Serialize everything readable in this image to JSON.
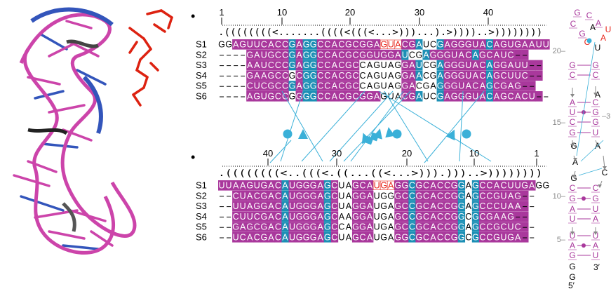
{
  "panel_a": {
    "structure_color": "#cc44aa",
    "helix_accent": "#3355bb",
    "ligand_color": "#dd2211"
  },
  "alignment_top": {
    "bullet": "•",
    "ticks": [
      "1",
      "10",
      "20",
      "30",
      "40"
    ],
    "dot_bracket": ".((((((((<.......((((<(((<...>)))...).>))))..>))))))))",
    "rows": [
      {
        "label": "S1",
        "seq": "GGAGUUCACCGAGGCCACGCGGAGUACGAUCGAGGGUACAGUGAAUU",
        "mask": "..MMMMMMMMBMBBMMMMMMMMMRRRMMBbbBMMMMMMBMMMMMMMMMM"
      },
      {
        "label": "S2",
        "seq": "----GAUGCCGAGGCCACGCGGUGGAUCGAGGGUACAGCAUC--",
        "mask": "----MMMMMMBMBBMMMMMMMMMMMMBbbBMMMMMMBMMMMMMM--"
      },
      {
        "label": "S3",
        "seq": "----AAUCCCGAGGCCACGCCAGUAGGAUCGAGGGUACAGGAUU--",
        "mask": "----MMMMMMBMBBMMMMMMwwwwwwMMBbbBMMMMMMBMMMMMMM--"
      },
      {
        "label": "S4",
        "seq": "----GAAGCCGCGGCCACGCCAGUAGGAACGAGGGUACAGCUUC--",
        "mask": "----MMMMMMwMBBMMMMMMwwwwwwMMBbbBMMMMMMBMMMMMMM--"
      },
      {
        "label": "S5",
        "seq": "----CUCGCCGAGGCCACGCCAGUAGGACGAGGGUACAGCGAG--",
        "mask": "----MMMMMMBMBBMMMMMMwwwwwwMMwbbBMMMMMMBMMMMMMM--"
      },
      {
        "label": "S6",
        "seq": "----AGUGCCGGGGCCACGCGGAGUACGAUCGAGGGUACAGCACU--",
        "mask": "----MMMMMMwMBBMMMMMMMMMwwwMMBbbBMMMMMMBMMMMMMM--"
      }
    ]
  },
  "alignment_bottom": {
    "bullet": "•",
    "ticks": [
      "40",
      "30",
      "20",
      "10",
      "1"
    ],
    "dot_bracket": ".((((((((<..(((<.((...((<...>))).)))..>))))))))",
    "rows": [
      {
        "label": "S1",
        "seq": "UUAAGUGACAUGGGAGCUAGCAUGAGGCGCACCGGAGCCACUUGAGG",
        "mask": "MMMMMMMMMBMMMMMBMwwMMMRRRMMBMMMMMMBwBMMMMMMMM.."
      },
      {
        "label": "S2",
        "seq": "--CUACGACAUGGGAGCUAGGAUGGGCCGCACCGGAGCCGUAG--",
        "mask": "--MMMMMMMBMMMMMBMwwMMMwwwMMBMMMMMMBwBMMMMMMM--"
      },
      {
        "label": "S3",
        "seq": "--UUAGGACAUGGGAGCUAGGAUGAGCCGCACCGGAGCCCUAA--",
        "mask": "--MMMMMMMBMMMMMBMwwMMMwwwMMBMMMMMMBwBMMMMMMM--"
      },
      {
        "label": "S4",
        "seq": "--CUUCGACAUGGGAGCAAGGAUGAGCCGCACCGGCGCGAAG--",
        "mask": "--MMMMMMMBMMMMMBMwwMMMwwwMMBMMMMMMBwBMMMMMMM--"
      },
      {
        "label": "S5",
        "seq": "--GAGCGACAUGGGAGCCAGGAUGAGCCGCACCGGAGCCGCUC--",
        "mask": "--MMMMMMMBMMMMMBMwwMMMwwwMMBMMMMMMBwBMMMMMMM--"
      },
      {
        "label": "S6",
        "seq": "--UCACGACAUGGGAGCUAGCAUGAGGCGCACCGGCGCCGUGA--",
        "mask": "--MMMMMMMBMMMMMBMwwMMMwwwMMBMMMMMMBwBMMMMMMM--"
      }
    ]
  },
  "colors": {
    "magenta": "#a9389c",
    "blue": "#1c8fb5",
    "red": "#e8281e",
    "connector": "#3ab0d8",
    "gray": "#888888"
  },
  "panel_c": {
    "numbers": [
      "20",
      "15",
      "10",
      "5"
    ],
    "prime3": "3′",
    "prime5": "5′",
    "side_label": "3",
    "letters": [
      {
        "t": "G",
        "c": "m"
      },
      {
        "t": "C",
        "c": "m"
      },
      {
        "t": "A",
        "c": "m"
      },
      {
        "t": "U",
        "c": "r"
      },
      {
        "t": "C",
        "c": "m"
      },
      {
        "t": "G",
        "c": "m"
      },
      {
        "t": "A",
        "c": "k"
      },
      {
        "t": "A",
        "c": "r"
      },
      {
        "t": "U",
        "c": "k"
      },
      {
        "t": "C",
        "c": "r"
      },
      {
        "t": "G",
        "c": "m"
      },
      {
        "t": "C",
        "c": "m"
      },
      {
        "t": "G",
        "c": "m"
      },
      {
        "t": "C",
        "c": "m"
      },
      {
        "t": "A",
        "c": "k"
      },
      {
        "t": "A",
        "c": "m"
      },
      {
        "t": "U",
        "c": "m"
      },
      {
        "t": "C",
        "c": "m"
      },
      {
        "t": "G",
        "c": "m"
      },
      {
        "t": "C",
        "c": "m"
      },
      {
        "t": "G",
        "c": "m"
      },
      {
        "t": "G",
        "c": "m"
      },
      {
        "t": "U",
        "c": "m"
      },
      {
        "t": "G",
        "c": "k"
      },
      {
        "t": "A",
        "c": "k"
      },
      {
        "t": "G",
        "c": "k"
      },
      {
        "t": "A",
        "c": "k"
      },
      {
        "t": "C",
        "c": "k"
      },
      {
        "t": "C",
        "c": "m"
      },
      {
        "t": "G",
        "c": "m"
      },
      {
        "t": "A",
        "c": "m"
      },
      {
        "t": "U",
        "c": "m"
      },
      {
        "t": "C",
        "c": "m"
      },
      {
        "t": "G",
        "c": "m"
      },
      {
        "t": "U",
        "c": "m"
      },
      {
        "t": "A",
        "c": "m"
      },
      {
        "t": "U",
        "c": "m"
      },
      {
        "t": "A",
        "c": "m"
      },
      {
        "t": "G",
        "c": "m"
      },
      {
        "t": "U",
        "c": "m"
      },
      {
        "t": "A",
        "c": "m"
      },
      {
        "t": "U",
        "c": "m"
      },
      {
        "t": "G",
        "c": "k"
      },
      {
        "t": "G",
        "c": "k"
      }
    ]
  }
}
